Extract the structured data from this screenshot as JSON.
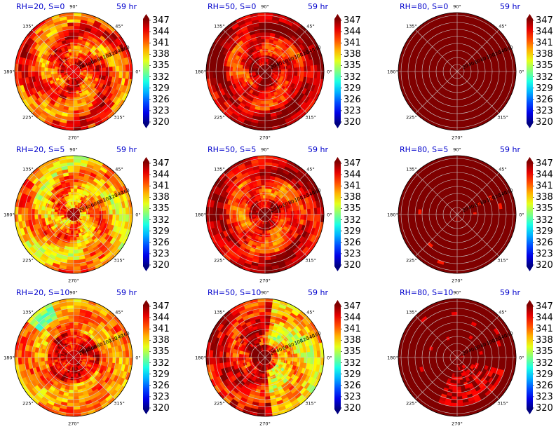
{
  "chart_data": {
    "type": "heatmap",
    "projection": "polar",
    "valid_time": "59 hr",
    "colormap": "jet",
    "value_range": [
      320,
      347
    ],
    "colorbar_ticks": [
      "347",
      "344",
      "341",
      "338",
      "335",
      "332",
      "329",
      "326",
      "323",
      "320"
    ],
    "angle_tick_labels": [
      "90°",
      "45°",
      "0°",
      "315°",
      "270°",
      "225°",
      "180°",
      "135°"
    ],
    "radial_tick_labels": [
      "20",
      "40",
      "60",
      "80",
      "100",
      "120",
      "140",
      "160"
    ],
    "radial_range": [
      0,
      180
    ],
    "grid": true,
    "legend": "colorbar-right",
    "panels": [
      {
        "title": "RH=20, S=0",
        "time": "59 hr",
        "pattern": "spiral-warm",
        "base": 342,
        "eye": 344,
        "amp": 5
      },
      {
        "title": "RH=50, S=0",
        "time": "59 hr",
        "pattern": "spiral-hot",
        "base": 346,
        "eye": 347,
        "amp": 5
      },
      {
        "title": "RH=80, S=0",
        "time": "59 hr",
        "pattern": "uniform",
        "base": 347,
        "eye": 347,
        "amp": 0
      },
      {
        "title": "RH=20, S=5",
        "time": "59 hr",
        "pattern": "spiral-cool",
        "base": 340,
        "eye": 346,
        "amp": 5
      },
      {
        "title": "RH=50, S=5",
        "time": "59 hr",
        "pattern": "spiral-hot",
        "base": 345,
        "eye": 347,
        "amp": 5
      },
      {
        "title": "RH=80, S=5",
        "time": "59 hr",
        "pattern": "uniform-speckle",
        "base": 347,
        "eye": 347,
        "amp": 1
      },
      {
        "title": "RH=20, S=10",
        "time": "59 hr",
        "pattern": "asym-warm",
        "base": 341,
        "eye": 345,
        "amp": 5
      },
      {
        "title": "RH=50, S=10",
        "time": "59 hr",
        "pattern": "asym-mixed",
        "base": 340,
        "eye": 347,
        "amp": 6
      },
      {
        "title": "RH=80, S=10",
        "time": "59 hr",
        "pattern": "uniform-patch",
        "base": 347,
        "eye": 347,
        "amp": 2
      }
    ]
  }
}
